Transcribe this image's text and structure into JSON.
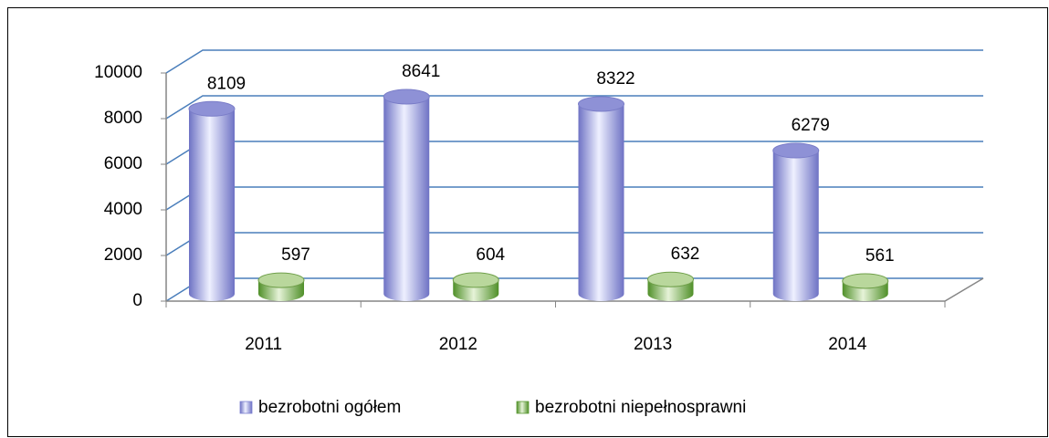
{
  "chart_data": {
    "type": "bar3d",
    "categories": [
      "2011",
      "2012",
      "2013",
      "2014"
    ],
    "series": [
      {
        "name": "bezrobotni ogółem",
        "color": "#7b7fd0",
        "values": [
          8109,
          8641,
          8322,
          6279
        ]
      },
      {
        "name": "bezrobotni niepełnosprawni",
        "color": "#5a9a32",
        "values": [
          597,
          604,
          632,
          561
        ]
      }
    ],
    "ylim": [
      0,
      10000
    ],
    "yticks": [
      0,
      2000,
      4000,
      6000,
      8000,
      10000
    ],
    "grid": true,
    "legend": "bottom"
  }
}
